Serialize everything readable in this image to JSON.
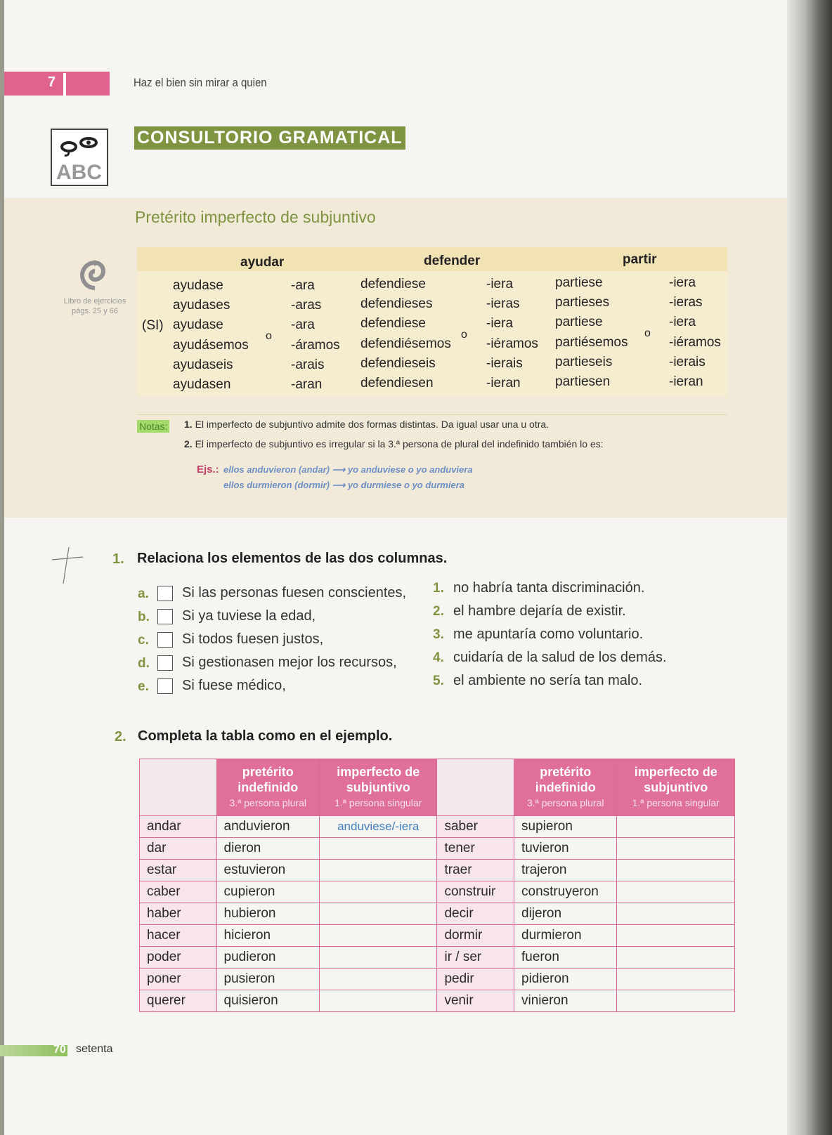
{
  "header": {
    "chapter_number": "7",
    "chapter_title": "Haz el bien sin mirar a quien"
  },
  "section": {
    "label": "CONSULTORIO GRAMATICAL",
    "logo_text": "ABC",
    "title": "Pretérito imperfecto de subjuntivo"
  },
  "sidenote": {
    "line1": "Libro de ejercicios",
    "line2": "págs. 25 y 66"
  },
  "conjugation": {
    "si_label": "(SI)",
    "or_label": "o",
    "verbs": [
      {
        "infinitive": "ayudar",
        "forms": [
          "ayudase",
          "ayudases",
          "ayudase",
          "ayudásemos",
          "ayudaseis",
          "ayudasen"
        ],
        "endings": [
          "-ara",
          "-aras",
          "-ara",
          "-áramos",
          "-arais",
          "-aran"
        ]
      },
      {
        "infinitive": "defender",
        "forms": [
          "defendiese",
          "defendieses",
          "defendiese",
          "defendiésemos",
          "defendieseis",
          "defendiesen"
        ],
        "endings": [
          "-iera",
          "-ieras",
          "-iera",
          "-iéramos",
          "-ierais",
          "-ieran"
        ]
      },
      {
        "infinitive": "partir",
        "forms": [
          "partiese",
          "partieses",
          "partiese",
          "partiésemos",
          "partieseis",
          "partiesen"
        ],
        "endings": [
          "-iera",
          "-ieras",
          "-iera",
          "-iéramos",
          "-ierais",
          "-ieran"
        ]
      }
    ]
  },
  "notes": {
    "label": "Notas:",
    "items": [
      {
        "num": "1.",
        "text": "El imperfecto de subjuntivo admite dos formas distintas. Da igual usar una u otra."
      },
      {
        "num": "2.",
        "text": "El imperfecto de subjuntivo es irregular si la 3.ª persona de plural del indefinido también lo es:"
      }
    ],
    "examples_label": "Ejs.:",
    "examples": [
      "ellos anduvieron (andar) ⟶ yo anduviese o yo anduviera",
      "ellos durmieron (dormir) ⟶ yo durmiese o yo durmiera"
    ]
  },
  "exercise1": {
    "number": "1.",
    "title": "Relaciona los elementos de las dos columnas.",
    "left": [
      {
        "letter": "a.",
        "text": "Si las personas fuesen conscientes,"
      },
      {
        "letter": "b.",
        "text": "Si ya tuviese la edad,"
      },
      {
        "letter": "c.",
        "text": "Si todos fuesen justos,"
      },
      {
        "letter": "d.",
        "text": "Si gestionasen mejor los recursos,"
      },
      {
        "letter": "e.",
        "text": "Si fuese médico,"
      }
    ],
    "right": [
      {
        "num": "1.",
        "text": "no habría tanta discriminación."
      },
      {
        "num": "2.",
        "text": "el hambre dejaría de existir."
      },
      {
        "num": "3.",
        "text": "me apuntaría como voluntario."
      },
      {
        "num": "4.",
        "text": "cuidaría de la salud de los demás."
      },
      {
        "num": "5.",
        "text": "el ambiente no sería tan malo."
      }
    ]
  },
  "exercise2": {
    "number": "2.",
    "title": "Completa la tabla como en el ejemplo.",
    "headers": {
      "col1": "pretérito indefinido",
      "col1_sub": "3.ª persona plural",
      "col2": "imperfecto de subjuntivo",
      "col2_sub": "1.ª persona singular"
    },
    "rows": [
      {
        "v1": "andar",
        "p1": "anduvieron",
        "s1": "anduviese/-iera",
        "v2": "saber",
        "p2": "supieron",
        "s2": ""
      },
      {
        "v1": "dar",
        "p1": "dieron",
        "s1": "",
        "v2": "tener",
        "p2": "tuvieron",
        "s2": ""
      },
      {
        "v1": "estar",
        "p1": "estuvieron",
        "s1": "",
        "v2": "traer",
        "p2": "trajeron",
        "s2": ""
      },
      {
        "v1": "caber",
        "p1": "cupieron",
        "s1": "",
        "v2": "construir",
        "p2": "construyeron",
        "s2": ""
      },
      {
        "v1": "haber",
        "p1": "hubieron",
        "s1": "",
        "v2": "decir",
        "p2": "dijeron",
        "s2": ""
      },
      {
        "v1": "hacer",
        "p1": "hicieron",
        "s1": "",
        "v2": "dormir",
        "p2": "durmieron",
        "s2": ""
      },
      {
        "v1": "poder",
        "p1": "pudieron",
        "s1": "",
        "v2": "ir / ser",
        "p2": "fueron",
        "s2": ""
      },
      {
        "v1": "poner",
        "p1": "pusieron",
        "s1": "",
        "v2": "pedir",
        "p2": "pidieron",
        "s2": ""
      },
      {
        "v1": "querer",
        "p1": "quisieron",
        "s1": "",
        "v2": "venir",
        "p2": "vinieron",
        "s2": ""
      }
    ]
  },
  "footer": {
    "page_number": "70",
    "page_word": "setenta"
  },
  "colors": {
    "pink": "#e0638f",
    "olive": "#7f9440",
    "answer_blue": "#3e7fbf",
    "notes_green": "#a6d96c"
  }
}
